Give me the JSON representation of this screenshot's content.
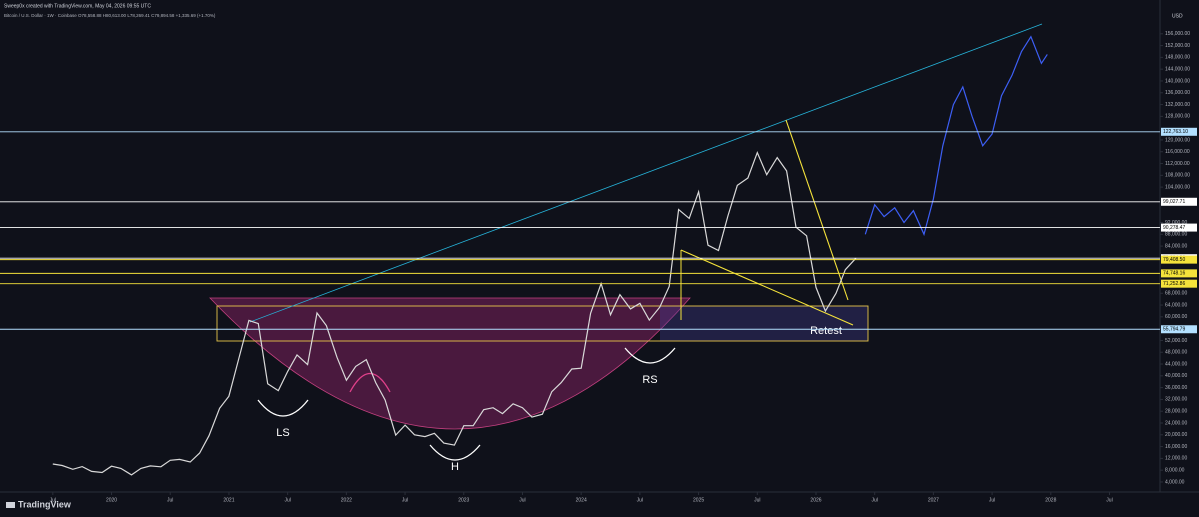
{
  "header": {
    "author_line": "Sweep0x created with TradingView.com, May 04, 2026 09:55 UTC",
    "symbol_line": "Bitcoin / U.S. Dollar · 1W · Coinbase  O78,558.88 H80,613.00 L78,269.41 C79,894.58 +1,335.69 (+1.70%)"
  },
  "brand": "TradingView",
  "currency": "USD",
  "chart_data": {
    "type": "line",
    "annotations": [
      {
        "text": "LS"
      },
      {
        "text": "H"
      },
      {
        "text": "RS"
      },
      {
        "text": "Retest"
      }
    ],
    "xlim": [
      2019.05,
      2028.93
    ],
    "xticks": [
      {
        "value": 2019.5,
        "label": "Jul"
      },
      2020,
      {
        "value": 2020.5,
        "label": "Jul"
      },
      2021,
      {
        "value": 2021.5,
        "label": "Jul"
      },
      2022,
      {
        "value": 2022.5,
        "label": "Jul"
      },
      2023,
      {
        "value": 2023.5,
        "label": "Jul"
      },
      2024,
      {
        "value": 2024.5,
        "label": "Jul"
      },
      2025,
      {
        "value": 2025.5,
        "label": "Jul"
      },
      2026,
      {
        "value": 2026.5,
        "label": "Jul"
      },
      2027,
      {
        "value": 2027.5,
        "label": "Jul"
      },
      2028,
      {
        "value": 2028.5,
        "label": "Jul"
      }
    ],
    "ylim": [
      600,
      160000
    ],
    "yticks": [
      {
        "value": 4000,
        "label": "4,000.00"
      },
      {
        "value": 8000,
        "label": "8,000.00"
      },
      {
        "value": 12000,
        "label": "12,000.00"
      },
      {
        "value": 16000,
        "label": "16,000.00"
      },
      {
        "value": 20000,
        "label": "20,000.00"
      },
      {
        "value": 24000,
        "label": "24,000.00"
      },
      {
        "value": 28000,
        "label": "28,000.00"
      },
      {
        "value": 32000,
        "label": "32,000.00"
      },
      {
        "value": 36000,
        "label": "36,000.00"
      },
      {
        "value": 40000,
        "label": "40,000.00"
      },
      {
        "value": 44000,
        "label": "44,000.00"
      },
      {
        "value": 48000,
        "label": "48,000.00"
      },
      {
        "value": 52000,
        "label": "52,000.00"
      },
      {
        "value": 56000,
        "label": "56,000.00"
      },
      {
        "value": 60000,
        "label": "60,000.00"
      },
      {
        "value": 64000,
        "label": "64,000.00"
      },
      {
        "value": 68000,
        "label": "68,000.00"
      },
      {
        "value": 84000,
        "label": "84,000.00"
      },
      {
        "value": 88000,
        "label": "88,000.00"
      },
      {
        "value": 92000,
        "label": "92,000.00"
      },
      {
        "value": 104000,
        "label": "104,000.00"
      },
      {
        "value": 108000,
        "label": "108,000.00"
      },
      {
        "value": 112000,
        "label": "112,000.00"
      },
      {
        "value": 116000,
        "label": "116,000.00"
      },
      {
        "value": 120000,
        "label": "120,000.00"
      },
      {
        "value": 128000,
        "label": "128,000.00"
      },
      {
        "value": 132000,
        "label": "132,000.00"
      },
      {
        "value": 136000,
        "label": "136,000.00"
      },
      {
        "value": 140000,
        "label": "140,000.00"
      },
      {
        "value": 144000,
        "label": "144,000.00"
      },
      {
        "value": 148000,
        "label": "148,000.00"
      },
      {
        "value": 152000,
        "label": "152,000.00"
      },
      {
        "value": 156000,
        "label": "156,000.00"
      }
    ],
    "levels": [
      {
        "value": 122763.1,
        "label": "122,763.10",
        "color": "#b3e0ff"
      },
      {
        "value": 99027.71,
        "label": "99,027.71",
        "color": "#ffffff"
      },
      {
        "value": 90278.47,
        "label": "90,278.47",
        "color": "#ffffff"
      },
      {
        "value": 79894.58,
        "label": "79,894.58",
        "color": "#ffffff"
      },
      {
        "value": 79408.5,
        "label": "79,408.50",
        "color": "#f5e33b"
      },
      {
        "value": 74748.16,
        "label": "74,748.16",
        "color": "#f5e33b"
      },
      {
        "value": 71252.86,
        "label": "71,252.86",
        "color": "#f5e33b"
      },
      {
        "value": 55794.79,
        "label": "55,794.79",
        "color": "#b3e0ff"
      }
    ],
    "series": [
      {
        "color": "#d9d9d9",
        "x": [
          2019.5,
          2019.58,
          2019.67,
          2019.75,
          2019.83,
          2019.92,
          2020,
          2020.08,
          2020.17,
          2020.25,
          2020.33,
          2020.42,
          2020.5,
          2020.58,
          2020.67,
          2020.75,
          2020.83,
          2020.92,
          2021,
          2021.08,
          2021.17,
          2021.25,
          2021.33,
          2021.42,
          2021.5,
          2021.58,
          2021.67,
          2021.75,
          2021.83,
          2021.92,
          2022,
          2022.08,
          2022.17,
          2022.25,
          2022.33,
          2022.42,
          2022.5,
          2022.58,
          2022.67,
          2022.75,
          2022.83,
          2022.92,
          2023,
          2023.08,
          2023.17,
          2023.25,
          2023.33,
          2023.42,
          2023.5,
          2023.58,
          2023.67,
          2023.75,
          2023.83,
          2023.92,
          2024,
          2024.08,
          2024.17,
          2024.25,
          2024.33,
          2024.42,
          2024.5,
          2024.58,
          2024.67,
          2024.75,
          2024.83,
          2024.92,
          2025,
          2025.08,
          2025.17,
          2025.25,
          2025.33,
          2025.42,
          2025.5,
          2025.58,
          2025.67,
          2025.75,
          2025.83,
          2025.92,
          2026,
          2026.08,
          2026.17,
          2026.25,
          2026.34
        ],
        "values": [
          10100,
          9600,
          8300,
          9200,
          7600,
          7200,
          9350,
          8600,
          6400,
          8600,
          9450,
          9140,
          11350,
          11650,
          10780,
          13800,
          19700,
          29000,
          33100,
          45200,
          58800,
          57700,
          37300,
          35000,
          41500,
          47100,
          43800,
          61300,
          57000,
          46300,
          38500,
          43200,
          45500,
          37700,
          31800,
          19900,
          23300,
          20000,
          19400,
          20500,
          17200,
          16500,
          23100,
          23100,
          28500,
          29200,
          27200,
          30500,
          29200,
          26000,
          27000,
          34600,
          37700,
          42300,
          42600,
          61200,
          71300,
          60700,
          67500,
          62700,
          64600,
          58900,
          63300,
          70300,
          96400,
          93400,
          102400,
          84300,
          82500,
          94200,
          104600,
          107100,
          115700,
          108200,
          114000,
          109500,
          90400,
          87500,
          70000,
          62000,
          68000,
          76000,
          79894.58
        ]
      },
      {
        "color": "#3d5ff5",
        "x": [
          2026.42,
          2026.5,
          2026.58,
          2026.67,
          2026.75,
          2026.83,
          2026.92,
          2027,
          2027.08,
          2027.17,
          2027.25,
          2027.33,
          2027.42,
          2027.5,
          2027.58,
          2027.67,
          2027.75,
          2027.83,
          2027.92,
          2027.97
        ],
        "values": [
          88000,
          98000,
          94000,
          97000,
          92000,
          96000,
          88000,
          100000,
          118000,
          132000,
          138000,
          128000,
          118000,
          122000,
          135000,
          142000,
          150000,
          155000,
          146000,
          149000
        ]
      }
    ]
  }
}
